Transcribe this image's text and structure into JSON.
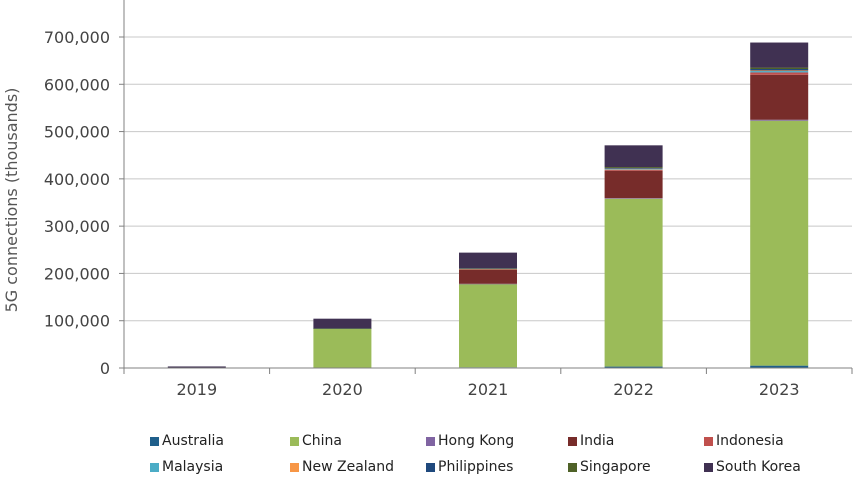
{
  "chart_data": {
    "type": "bar",
    "stacked": true,
    "title": "",
    "xlabel": "",
    "ylabel": "5G connections (thousands)",
    "ylim": [
      0,
      700000
    ],
    "yticks": [
      0,
      100000,
      200000,
      300000,
      400000,
      500000,
      600000,
      700000
    ],
    "ytick_labels": [
      "0",
      "100,000",
      "200,000",
      "300,000",
      "400,000",
      "500,000",
      "600,000",
      "700,000"
    ],
    "categories": [
      "2019",
      "2020",
      "2021",
      "2022",
      "2023"
    ],
    "grid": true,
    "legend_position": "bottom",
    "series": [
      {
        "name": "Australia",
        "color": "#1f5f8b",
        "values": [
          300,
          800,
          1500,
          3000,
          5000
        ]
      },
      {
        "name": "China",
        "color": "#9bbb59",
        "values": [
          0,
          83000,
          176000,
          355000,
          518000
        ]
      },
      {
        "name": "Hong Kong",
        "color": "#8064a2",
        "values": [
          0,
          200,
          600,
          1200,
          2000
        ]
      },
      {
        "name": "India",
        "color": "#772c2a",
        "values": [
          0,
          0,
          30000,
          58000,
          95000
        ]
      },
      {
        "name": "Indonesia",
        "color": "#c0504d",
        "values": [
          0,
          0,
          500,
          2000,
          5000
        ]
      },
      {
        "name": "Malaysia",
        "color": "#4bacc6",
        "values": [
          0,
          0,
          500,
          1500,
          3000
        ]
      },
      {
        "name": "New Zealand",
        "color": "#f79646",
        "values": [
          0,
          0,
          300,
          700,
          1300
        ]
      },
      {
        "name": "Philippines",
        "color": "#1f497d",
        "values": [
          0,
          200,
          800,
          1500,
          3000
        ]
      },
      {
        "name": "Singapore",
        "color": "#4f6228",
        "values": [
          0,
          100,
          800,
          2000,
          3000
        ]
      },
      {
        "name": "South Korea",
        "color": "#403152",
        "values": [
          3000,
          20000,
          33000,
          46000,
          53000
        ]
      }
    ]
  }
}
